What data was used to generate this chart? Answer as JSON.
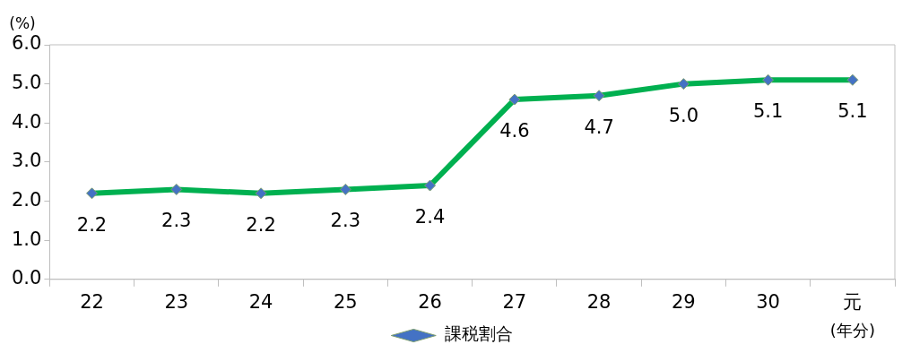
{
  "chart_data": {
    "type": "line",
    "ylabel": "(%)",
    "xlabel": "(年分)",
    "categories": [
      "22",
      "23",
      "24",
      "25",
      "26",
      "27",
      "28",
      "29",
      "30",
      "元"
    ],
    "series": [
      {
        "name": "課税割合",
        "color": "#00b050",
        "values": [
          2.2,
          2.3,
          2.2,
          2.3,
          2.4,
          4.6,
          4.7,
          5.0,
          5.1,
          5.1
        ],
        "value_labels": [
          "2.2",
          "2.3",
          "2.2",
          "2.3",
          "2.4",
          "4.6",
          "4.7",
          "5.0",
          "5.1",
          "5.1"
        ]
      }
    ],
    "ylim": [
      0,
      6
    ],
    "yticks": [
      {
        "value": 0,
        "label": "0.0"
      },
      {
        "value": 1,
        "label": "1.0"
      },
      {
        "value": 2,
        "label": "2.0"
      },
      {
        "value": 3,
        "label": "3.0"
      },
      {
        "value": 4,
        "label": "4.0"
      },
      {
        "value": 5,
        "label": "5.0"
      },
      {
        "value": 6,
        "label": "6.0"
      }
    ],
    "legend": "bottom",
    "marker": "diamond",
    "grid": false,
    "line_style": "solid"
  }
}
